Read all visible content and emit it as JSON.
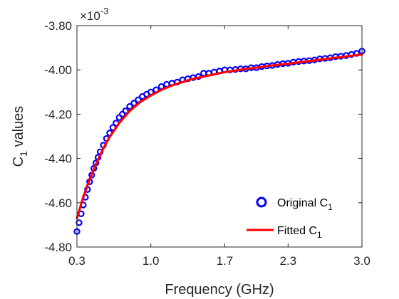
{
  "chart_data": {
    "type": "line",
    "xlabel": "Frequency (GHz)",
    "ylabel": "C",
    "ylabel_subscript": "1",
    "ylabel_suffix": " values",
    "exponent_prefix": "×10",
    "exponent_power": "-3",
    "xlim": [
      0.3,
      3.0
    ],
    "ylim": [
      -4.8,
      -3.8
    ],
    "x_ticks": [
      "0.3",
      "1.0",
      "1.7",
      "2.3",
      "3.0"
    ],
    "x_tick_values": [
      0.3,
      1.0,
      1.7,
      2.3,
      3.0
    ],
    "y_ticks": [
      "-3.80",
      "-4.00",
      "-4.20",
      "-4.40",
      "-4.60",
      "-4.80"
    ],
    "y_tick_values": [
      -3.8,
      -4.0,
      -4.2,
      -4.4,
      -4.6,
      -4.8
    ],
    "grid": false,
    "legend_position": "bottom-right",
    "series": [
      {
        "name": "Original C",
        "name_subscript": "1",
        "style": "markers",
        "marker": "circle",
        "color": "#0000ff",
        "x": [
          0.3,
          0.32,
          0.34,
          0.36,
          0.38,
          0.4,
          0.42,
          0.44,
          0.46,
          0.48,
          0.5,
          0.52,
          0.55,
          0.58,
          0.61,
          0.64,
          0.67,
          0.7,
          0.73,
          0.76,
          0.8,
          0.84,
          0.88,
          0.92,
          0.96,
          1.0,
          1.05,
          1.1,
          1.15,
          1.2,
          1.25,
          1.3,
          1.35,
          1.4,
          1.45,
          1.5,
          1.55,
          1.6,
          1.65,
          1.7,
          1.75,
          1.8,
          1.85,
          1.9,
          1.95,
          2.0,
          2.05,
          2.1,
          2.15,
          2.2,
          2.25,
          2.3,
          2.35,
          2.4,
          2.45,
          2.5,
          2.55,
          2.6,
          2.65,
          2.7,
          2.75,
          2.8,
          2.85,
          2.9,
          2.95,
          3.0
        ],
        "y": [
          -4.73,
          -4.69,
          -4.65,
          -4.61,
          -4.575,
          -4.54,
          -4.505,
          -4.475,
          -4.445,
          -4.42,
          -4.395,
          -4.37,
          -4.34,
          -4.31,
          -4.285,
          -4.26,
          -4.24,
          -4.215,
          -4.2,
          -4.185,
          -4.165,
          -4.15,
          -4.135,
          -4.12,
          -4.11,
          -4.1,
          -4.09,
          -4.075,
          -4.065,
          -4.06,
          -4.055,
          -4.045,
          -4.04,
          -4.035,
          -4.03,
          -4.015,
          -4.015,
          -4.01,
          -4.005,
          -4.0,
          -4.0,
          -3.998,
          -3.995,
          -3.995,
          -3.99,
          -3.99,
          -3.985,
          -3.982,
          -3.98,
          -3.975,
          -3.972,
          -3.97,
          -3.965,
          -3.962,
          -3.96,
          -3.958,
          -3.955,
          -3.95,
          -3.948,
          -3.945,
          -3.94,
          -3.938,
          -3.935,
          -3.93,
          -3.925,
          -3.915
        ]
      },
      {
        "name": "Fitted C",
        "name_subscript": "1",
        "style": "line",
        "color": "#ff0000",
        "x": [
          0.3,
          0.35,
          0.4,
          0.45,
          0.5,
          0.55,
          0.6,
          0.7,
          0.8,
          0.9,
          1.0,
          1.1,
          1.2,
          1.3,
          1.4,
          1.5,
          1.6,
          1.7,
          1.8,
          1.9,
          2.0,
          2.1,
          2.2,
          2.3,
          2.4,
          2.5,
          2.6,
          2.7,
          2.8,
          2.9,
          3.0
        ],
        "y": [
          -4.67,
          -4.59,
          -4.52,
          -4.46,
          -4.405,
          -4.355,
          -4.31,
          -4.24,
          -4.185,
          -4.145,
          -4.115,
          -4.09,
          -4.07,
          -4.055,
          -4.04,
          -4.03,
          -4.02,
          -4.01,
          -4.003,
          -3.995,
          -3.99,
          -3.983,
          -3.977,
          -3.972,
          -3.966,
          -3.96,
          -3.954,
          -3.948,
          -3.942,
          -3.936,
          -3.93
        ]
      }
    ]
  }
}
